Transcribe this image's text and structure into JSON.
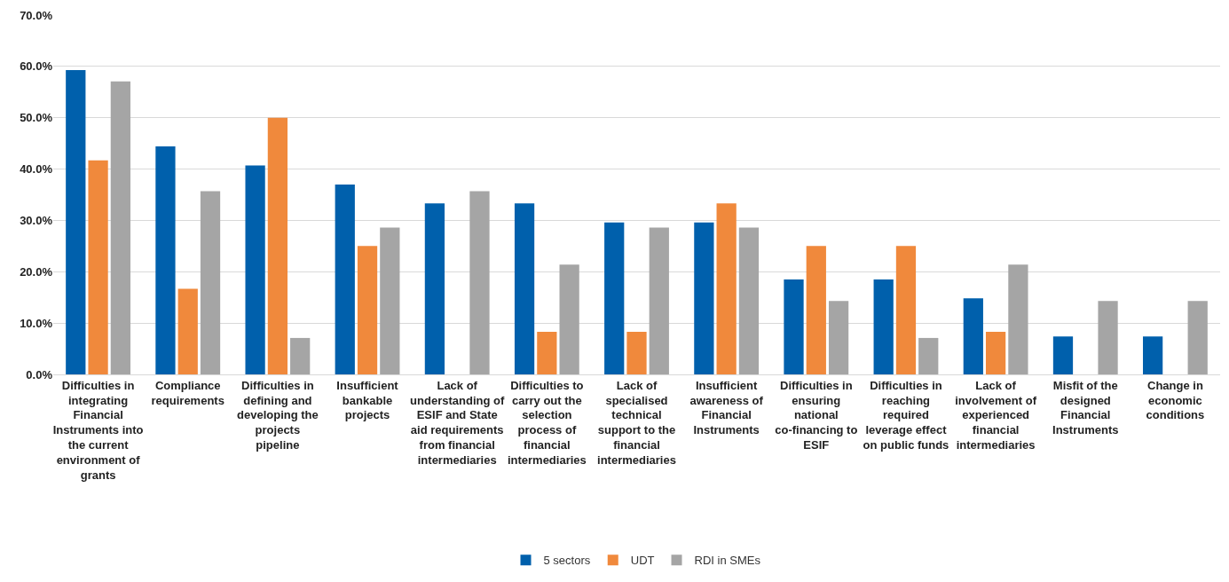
{
  "chart_data": {
    "type": "bar",
    "categories": [
      "Difficulties in integrating Financial Instruments into the current environment of grants",
      "Compliance requirements",
      "Difficulties in defining and developing the projects pipeline",
      "Insufficient bankable projects",
      "Lack of understanding of ESIF and State aid requirements from financial intermediaries",
      "Difficulties to carry out the selection process of financial intermediaries",
      "Lack of specialised technical support to the financial intermediaries",
      "Insufficient awareness of Financial Instruments",
      "Difficulties in ensuring national co-financing to ESIF",
      "Difficulties in reaching required leverage effect on public funds",
      "Lack of involvement of experienced financial intermediaries",
      "Misfit of the designed Financial Instruments",
      "Change in economic conditions"
    ],
    "series": [
      {
        "name": "5 sectors",
        "color": "#0060ac",
        "values": [
          59.3,
          44.4,
          40.7,
          37.0,
          33.3,
          33.3,
          29.6,
          29.6,
          18.5,
          18.5,
          14.8,
          7.4,
          7.4
        ]
      },
      {
        "name": "UDT",
        "color": "#f0893c",
        "values": [
          41.7,
          16.7,
          50.0,
          25.0,
          0,
          8.3,
          8.3,
          33.3,
          25.0,
          25.0,
          8.3,
          0,
          0
        ]
      },
      {
        "name": "RDI in SMEs",
        "color": "#a5a5a5",
        "values": [
          57.1,
          35.7,
          7.1,
          28.6,
          35.7,
          21.4,
          28.6,
          28.6,
          14.3,
          7.1,
          21.4,
          14.3,
          14.3
        ]
      }
    ],
    "ylim": [
      0,
      70
    ],
    "yticks": [
      {
        "value": 0,
        "label": "0.0%"
      },
      {
        "value": 10,
        "label": "10.0%"
      },
      {
        "value": 20,
        "label": "20.0%"
      },
      {
        "value": 30,
        "label": "30.0%"
      },
      {
        "value": 40,
        "label": "40.0%"
      },
      {
        "value": 50,
        "label": "50.0%"
      },
      {
        "value": 60,
        "label": "60.0%"
      },
      {
        "value": 70,
        "label": "70.0%"
      }
    ],
    "grid": "y",
    "legend": "bottom"
  }
}
